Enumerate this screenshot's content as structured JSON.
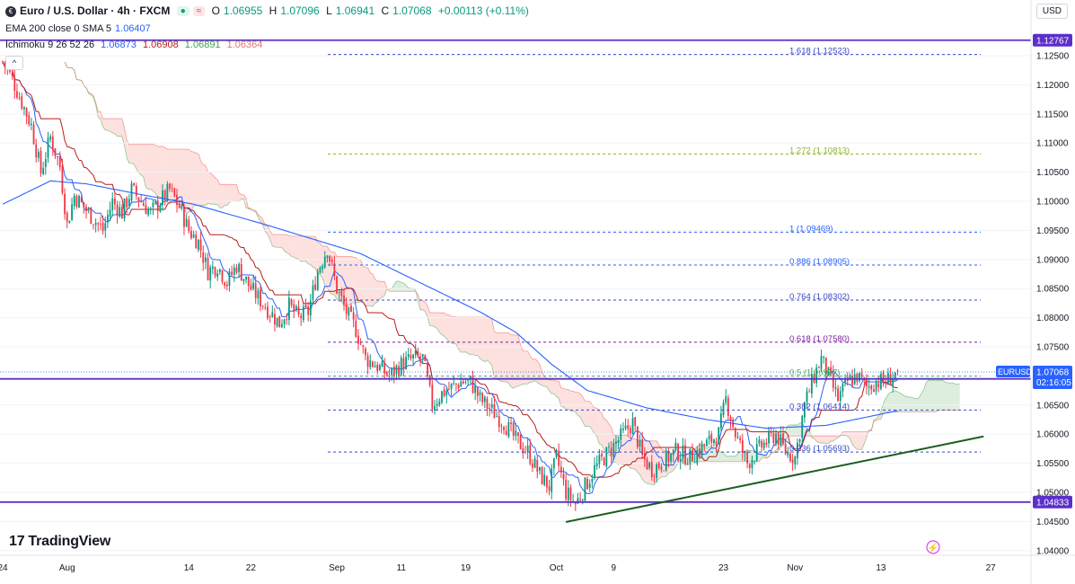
{
  "legend": {
    "symbol_icon": "euro-flag-icon",
    "title": "Euro / U.S. Dollar · 4h · FXCM",
    "open_label": "O",
    "open": "1.06955",
    "high_label": "H",
    "high": "1.07096",
    "low_label": "L",
    "low": "1.06941",
    "close_label": "C",
    "close": "1.07068",
    "change": "+0.00113 (+0.11%)",
    "ema_label": "EMA 200 close 0 SMA 5",
    "ema_value": "1.06407",
    "ichimoku_label": "Ichimoku 9 26 52 26",
    "ichi_v1": "1.06873",
    "ichi_v2": "1.06908",
    "ichi_v3": "1.06891",
    "ichi_v4": "1.06364"
  },
  "currency_button": "USD",
  "collapse_button": "^",
  "brand": "TradingView",
  "chart_data": {
    "type": "candlestick",
    "title": "Euro / U.S. Dollar · 4h · FXCM",
    "ylim": [
      1.0395,
      1.1318
    ],
    "y_ticks": [
      "1.04000",
      "1.04500",
      "1.05000",
      "1.05500",
      "1.06000",
      "1.06500",
      "1.07000",
      "1.07500",
      "1.08000",
      "1.08500",
      "1.09000",
      "1.09500",
      "1.10000",
      "1.10500",
      "1.11000",
      "1.11500",
      "1.12000",
      "1.12500"
    ],
    "x_ticks": [
      {
        "label": "24",
        "i": 0
      },
      {
        "label": "Aug",
        "i": 27
      },
      {
        "label": "14",
        "i": 78
      },
      {
        "label": "22",
        "i": 104
      },
      {
        "label": "Sep",
        "i": 140
      },
      {
        "label": "11",
        "i": 167
      },
      {
        "label": "19",
        "i": 194
      },
      {
        "label": "Oct",
        "i": 232
      },
      {
        "label": "9",
        "i": 256
      },
      {
        "label": "23",
        "i": 302
      },
      {
        "label": "Nov",
        "i": 332
      },
      {
        "label": "13",
        "i": 368
      },
      {
        "label": "27",
        "i": 414
      }
    ],
    "bar_count": 432,
    "data_bars": 376,
    "anchors": [
      [
        0,
        1.124
      ],
      [
        4,
        1.121
      ],
      [
        8,
        1.117
      ],
      [
        12,
        1.113
      ],
      [
        16,
        1.105
      ],
      [
        20,
        1.111
      ],
      [
        24,
        1.106
      ],
      [
        27,
        1.096
      ],
      [
        30,
        1.101
      ],
      [
        34,
        1.099
      ],
      [
        38,
        1.097
      ],
      [
        42,
        1.095
      ],
      [
        46,
        1.1
      ],
      [
        50,
        1.098
      ],
      [
        54,
        1.102
      ],
      [
        58,
        1.1
      ],
      [
        62,
        1.098
      ],
      [
        66,
        1.1
      ],
      [
        70,
        1.102
      ],
      [
        74,
        1.099
      ],
      [
        78,
        1.095
      ],
      [
        82,
        1.093
      ],
      [
        86,
        1.088
      ],
      [
        90,
        1.089
      ],
      [
        94,
        1.086
      ],
      [
        98,
        1.089
      ],
      [
        104,
        1.085
      ],
      [
        110,
        1.082
      ],
      [
        116,
        1.079
      ],
      [
        120,
        1.082
      ],
      [
        124,
        1.08
      ],
      [
        128,
        1.081
      ],
      [
        132,
        1.088
      ],
      [
        136,
        1.092
      ],
      [
        140,
        1.085
      ],
      [
        144,
        1.081
      ],
      [
        148,
        1.078
      ],
      [
        152,
        1.073
      ],
      [
        156,
        1.072
      ],
      [
        162,
        1.07
      ],
      [
        167,
        1.072
      ],
      [
        172,
        1.073
      ],
      [
        176,
        1.073
      ],
      [
        180,
        1.065
      ],
      [
        184,
        1.067
      ],
      [
        188,
        1.068
      ],
      [
        192,
        1.069
      ],
      [
        196,
        1.069
      ],
      [
        200,
        1.066
      ],
      [
        205,
        1.064
      ],
      [
        210,
        1.062
      ],
      [
        215,
        1.059
      ],
      [
        220,
        1.057
      ],
      [
        225,
        1.053
      ],
      [
        229,
        1.051
      ],
      [
        232,
        1.056
      ],
      [
        236,
        1.05
      ],
      [
        240,
        1.048
      ],
      [
        244,
        1.051
      ],
      [
        248,
        1.054
      ],
      [
        252,
        1.056
      ],
      [
        256,
        1.058
      ],
      [
        260,
        1.06
      ],
      [
        264,
        1.062
      ],
      [
        268,
        1.056
      ],
      [
        272,
        1.054
      ],
      [
        276,
        1.055
      ],
      [
        282,
        1.057
      ],
      [
        288,
        1.056
      ],
      [
        294,
        1.058
      ],
      [
        300,
        1.06
      ],
      [
        303,
        1.066
      ],
      [
        307,
        1.06
      ],
      [
        312,
        1.055
      ],
      [
        318,
        1.058
      ],
      [
        324,
        1.06
      ],
      [
        328,
        1.057
      ],
      [
        332,
        1.056
      ],
      [
        336,
        1.065
      ],
      [
        340,
        1.07
      ],
      [
        343,
        1.073
      ],
      [
        346,
        1.07
      ],
      [
        350,
        1.066
      ],
      [
        354,
        1.069
      ],
      [
        358,
        1.07
      ],
      [
        362,
        1.068
      ],
      [
        366,
        1.069
      ],
      [
        370,
        1.069
      ],
      [
        375,
        1.0707
      ]
    ],
    "ema200": [
      [
        0,
        1.0995
      ],
      [
        20,
        1.1035
      ],
      [
        35,
        1.103
      ],
      [
        60,
        1.101
      ],
      [
        80,
        1.0995
      ],
      [
        110,
        1.096
      ],
      [
        130,
        1.0935
      ],
      [
        150,
        1.091
      ],
      [
        165,
        1.088
      ],
      [
        180,
        1.085
      ],
      [
        200,
        1.081
      ],
      [
        215,
        1.0775
      ],
      [
        230,
        1.072
      ],
      [
        245,
        1.0675
      ],
      [
        270,
        1.0645
      ],
      [
        295,
        1.0625
      ],
      [
        320,
        1.061
      ],
      [
        345,
        1.0615
      ],
      [
        376,
        1.0641
      ]
    ],
    "fibonacci": [
      {
        "level": "1.618",
        "price": 1.12523,
        "label": "1.618 (1.12523)",
        "color": "#3a49c7"
      },
      {
        "level": "1.272",
        "price": 1.10813,
        "label": "1.272 (1.10813)",
        "color": "#8bb523"
      },
      {
        "level": "1",
        "price": 1.09469,
        "label": "1 (1.09469)",
        "color": "#2962ff"
      },
      {
        "level": "0.886",
        "price": 1.08905,
        "label": "0.886 (1.08905)",
        "color": "#2962ff"
      },
      {
        "level": "0.764",
        "price": 1.08302,
        "label": "0.764 (1.08302)",
        "color": "#3a49c7"
      },
      {
        "level": "0.618",
        "price": 1.0758,
        "label": "0.618 (1.07580)",
        "color": "#7b1fa2"
      },
      {
        "level": "0.5",
        "price": 1.06997,
        "label": "0.5 (1.06997)",
        "color": "#4caf50"
      },
      {
        "level": "0.382",
        "price": 1.06414,
        "label": "0.382 (1.06414)",
        "color": "#3a49c7"
      },
      {
        "level": "0.236",
        "price": 1.05693,
        "label": "0.236 (1.05693)",
        "color": "#3a49c7"
      }
    ],
    "horizontal_lines": [
      {
        "price": 1.12767,
        "label": "1.12767",
        "color": "#5b2fc9"
      },
      {
        "price": 1.06949,
        "label": "1.06949",
        "color": "#5b2fc9"
      },
      {
        "price": 1.04833,
        "label": "1.04833",
        "color": "#5b2fc9"
      }
    ],
    "trendline": {
      "from": [
        236,
        1.0449
      ],
      "to": [
        411,
        1.0596
      ],
      "color": "#1b5e20"
    },
    "last_price": {
      "symbol": "EURUSD",
      "price": "1.07068",
      "countdown": "02:16:05",
      "value": 1.07068,
      "color": "#2962ff"
    }
  }
}
